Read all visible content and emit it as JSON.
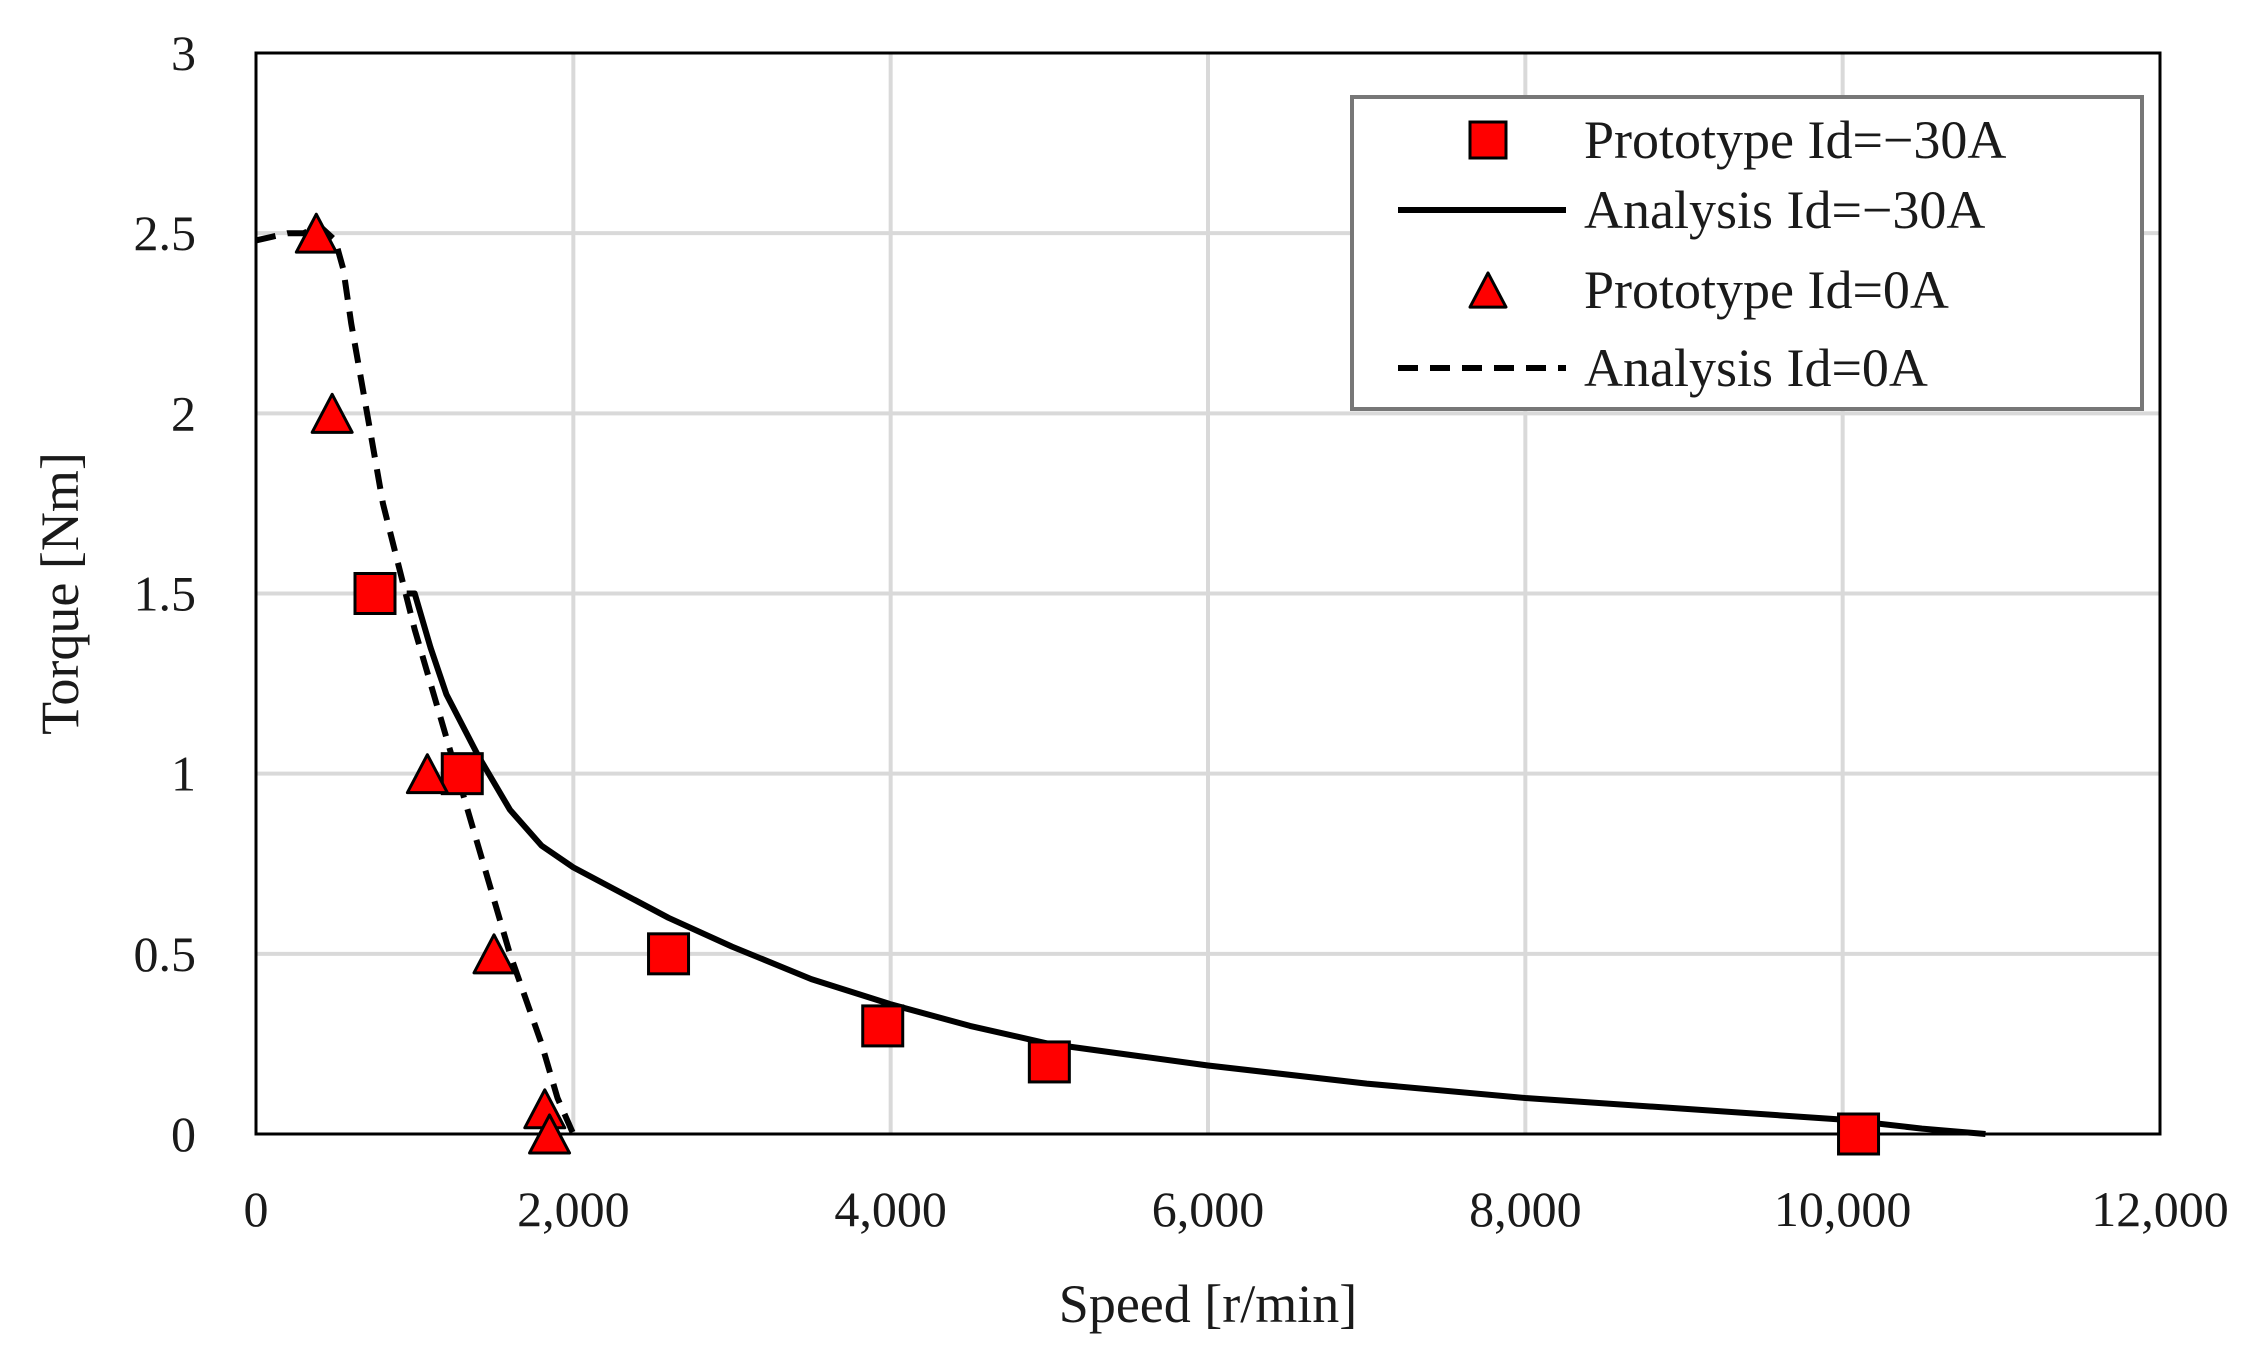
{
  "chart_data": {
    "type": "scatter",
    "xlabel": "Speed [r/min]",
    "ylabel": "Torque [Nm]",
    "xlim": [
      0,
      12000
    ],
    "ylim": [
      0,
      3
    ],
    "xticks": [
      0,
      2000,
      4000,
      6000,
      8000,
      10000,
      12000
    ],
    "xtick_labels": [
      "0",
      "2,000",
      "4,000",
      "6,000",
      "8,000",
      "10,000",
      "12,000"
    ],
    "yticks": [
      0,
      0.5,
      1,
      1.5,
      2,
      2.5,
      3
    ],
    "ytick_labels": [
      "0",
      "0.5",
      "1",
      "1.5",
      "2",
      "2.5",
      "3"
    ],
    "grid": true,
    "legend_position": "top-right",
    "colors": {
      "marker": "#ff0000",
      "line": "#000000",
      "grid": "#d9d9d9"
    },
    "series": [
      {
        "name": "Prototype Id=−30A",
        "kind": "scatter",
        "marker": "square",
        "x": [
          750,
          1300,
          2600,
          3950,
          5000,
          10100
        ],
        "y": [
          1.5,
          1.0,
          0.5,
          0.3,
          0.2,
          0.0
        ]
      },
      {
        "name": "Analysis Id=−30A",
        "kind": "line",
        "dash": "solid",
        "x": [
          950,
          1000,
          1100,
          1200,
          1400,
          1600,
          1800,
          2000,
          2300,
          2600,
          3000,
          3500,
          4000,
          4500,
          5000,
          6000,
          7000,
          8000,
          9000,
          10000,
          10500,
          10900
        ],
        "y": [
          1.5,
          1.5,
          1.35,
          1.22,
          1.05,
          0.9,
          0.8,
          0.74,
          0.67,
          0.6,
          0.52,
          0.43,
          0.36,
          0.3,
          0.25,
          0.19,
          0.14,
          0.1,
          0.07,
          0.04,
          0.015,
          0.0
        ]
      },
      {
        "name": "Prototype Id=0A",
        "kind": "scatter",
        "marker": "triangle",
        "x": [
          380,
          480,
          1080,
          1500,
          1820,
          1850
        ],
        "y": [
          2.5,
          2.0,
          1.0,
          0.5,
          0.07,
          0.0
        ]
      },
      {
        "name": "Analysis Id=0A",
        "kind": "line",
        "dash": "dashed",
        "x": [
          0,
          100,
          200,
          300,
          400,
          500,
          550,
          600,
          700,
          800,
          1000,
          1200,
          1400,
          1600,
          1800,
          1900,
          2000
        ],
        "y": [
          2.48,
          2.49,
          2.5,
          2.5,
          2.52,
          2.48,
          2.4,
          2.25,
          2.0,
          1.75,
          1.4,
          1.1,
          0.8,
          0.5,
          0.25,
          0.1,
          0.0
        ]
      }
    ]
  }
}
